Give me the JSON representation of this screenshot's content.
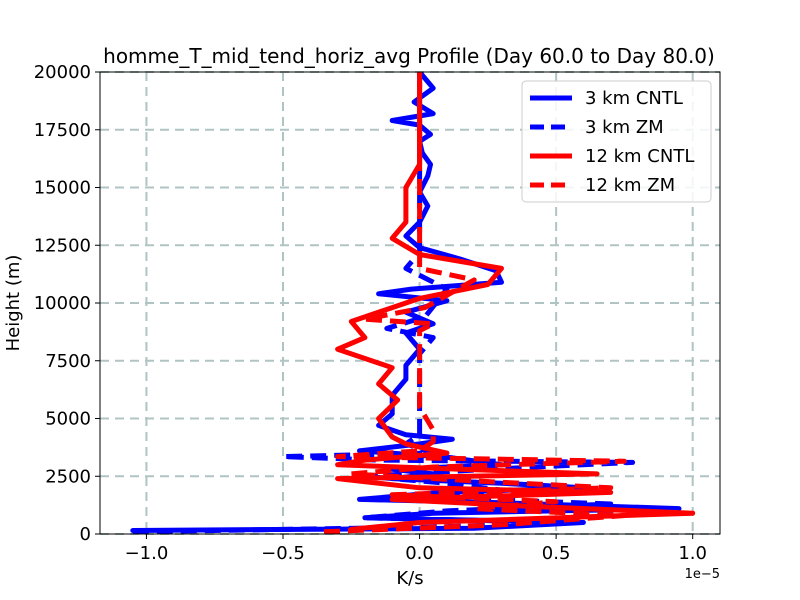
{
  "chart_data": {
    "type": "line",
    "title": "homme_T_mid_tend_horiz_avg Profile (Day 60.0 to Day 80.0)",
    "xlabel": "K/s",
    "ylabel": "Height (m)",
    "x_scale_label": "1e−5",
    "x_scale": 1e-05,
    "xlim": [
      -1.17,
      1.1
    ],
    "ylim": [
      0,
      20000
    ],
    "xticks": [
      -1.0,
      -0.5,
      0.0,
      0.5,
      1.0
    ],
    "xtick_labels": [
      "−1.0",
      "−0.5",
      "0.0",
      "0.5",
      "1.0"
    ],
    "yticks": [
      0,
      2500,
      5000,
      7500,
      10000,
      12500,
      15000,
      17500,
      20000
    ],
    "ytick_labels": [
      "0",
      "2500",
      "5000",
      "7500",
      "10000",
      "12500",
      "15000",
      "17500",
      "20000"
    ],
    "grid": true,
    "legend_position": "top-right",
    "series": [
      {
        "name": "3 km CNTL",
        "color": "#0000ff",
        "style": "solid",
        "x": [
          -1.05,
          0.2,
          0.6,
          -0.2,
          0.05,
          0.95,
          0.3,
          -0.22,
          0.08,
          0.6,
          0.3,
          -0.1,
          0.05,
          -0.1,
          0.3,
          0.12,
          -0.22,
          0.0,
          0.12,
          -0.05,
          -0.15,
          -0.1,
          -0.1,
          -0.05,
          -0.05,
          0.0,
          -0.05,
          0.05,
          -0.05,
          0.1,
          -0.15,
          -0.03,
          0.3,
          0.28,
          0.15,
          0.0,
          -0.05,
          0.0,
          0.03,
          0.0,
          0.03,
          0.04,
          0.01,
          0.0,
          0.04,
          0.02,
          0.0,
          -0.1,
          0.05,
          -0.02,
          0.05,
          0.0
        ],
        "y": [
          150,
          250,
          500,
          700,
          900,
          1100,
          1350,
          1500,
          1800,
          2000,
          2200,
          2400,
          2600,
          2800,
          3000,
          3300,
          3600,
          3900,
          4100,
          4300,
          4700,
          5200,
          6000,
          6700,
          7300,
          8000,
          8700,
          9100,
          9600,
          10100,
          10400,
          10600,
          10900,
          11400,
          11900,
          12400,
          12900,
          13500,
          14200,
          14800,
          15500,
          16000,
          16500,
          17000,
          17300,
          17500,
          17700,
          17900,
          18200,
          18700,
          19300,
          20000
        ]
      },
      {
        "name": "3 km ZM",
        "color": "#0000ff",
        "style": "dashed",
        "x": [
          -1.05,
          0.05,
          0.55,
          -0.2,
          0.1,
          0.7,
          0.0,
          0.3,
          0.1,
          -0.2,
          0.25,
          0.78,
          -0.15,
          -0.5,
          0.05,
          -0.05,
          0.0,
          0.0,
          0.0,
          0.0,
          0.0,
          0.05,
          -0.12,
          0.02,
          0.1,
          -0.05,
          0.0,
          0.0,
          0.0,
          0.0,
          0.0,
          0.0,
          0.0,
          0.0,
          0.0,
          0.0
        ],
        "y": [
          100,
          300,
          500,
          700,
          1000,
          1300,
          1600,
          1900,
          2200,
          2500,
          2800,
          3100,
          3200,
          3350,
          3500,
          3900,
          4300,
          5000,
          6000,
          7000,
          7800,
          8500,
          8900,
          9400,
          10600,
          11500,
          12200,
          13000,
          14000,
          15000,
          16000,
          16500,
          17000,
          18000,
          19000,
          20000
        ]
      },
      {
        "name": "12 km CNTL",
        "color": "#ff0000",
        "style": "solid",
        "x": [
          -0.25,
          0.0,
          1.0,
          0.4,
          -0.1,
          0.7,
          0.0,
          -0.3,
          0.65,
          0.15,
          -0.3,
          -0.2,
          0.1,
          -0.05,
          -0.1,
          -0.15,
          -0.08,
          -0.15,
          -0.1,
          -0.3,
          -0.2,
          -0.25,
          -0.1,
          0.0,
          0.25,
          0.3,
          0.0,
          -0.1,
          -0.05,
          -0.05,
          -0.05,
          0.0,
          0.0,
          0.0,
          0.0,
          0.0
        ],
        "y": [
          200,
          500,
          900,
          1200,
          1500,
          1800,
          2000,
          2400,
          2600,
          2800,
          3000,
          3200,
          3500,
          3900,
          4200,
          5000,
          5800,
          6500,
          7200,
          8000,
          8500,
          9200,
          9800,
          10200,
          10800,
          11500,
          12100,
          12800,
          13500,
          14300,
          15000,
          16000,
          17000,
          18000,
          19000,
          20000
        ]
      },
      {
        "name": "12 km ZM",
        "color": "#ff0000",
        "style": "dashed",
        "x": [
          -0.35,
          0.3,
          0.75,
          0.2,
          0.5,
          -0.1,
          0.7,
          0.2,
          -0.25,
          0.05,
          0.75,
          -0.3,
          0.0,
          0.05,
          0.05,
          0.0,
          0.0,
          0.0,
          0.0,
          0.0,
          0.05,
          -0.2,
          0.02,
          0.2,
          0.0,
          0.0,
          0.0,
          0.0,
          0.0,
          0.0,
          0.0
        ],
        "y": [
          100,
          400,
          800,
          1100,
          1400,
          1700,
          2000,
          2300,
          2600,
          2900,
          3150,
          3350,
          3600,
          4000,
          4500,
          5500,
          6500,
          7500,
          8200,
          8800,
          9100,
          9300,
          9800,
          11000,
          11500,
          12500,
          14000,
          15500,
          17000,
          18500,
          20000
        ]
      }
    ]
  }
}
